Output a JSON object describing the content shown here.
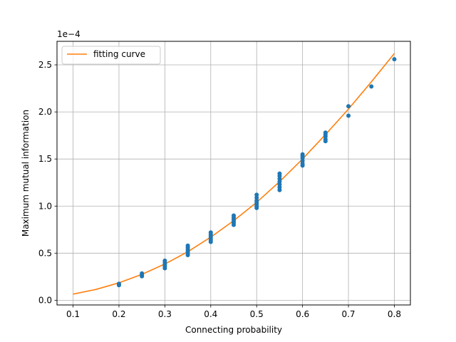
{
  "chart_data": {
    "type": "scatter",
    "xlabel": "Connecting probability",
    "ylabel": "Maximum mutual information",
    "y_offset_text": "1e−4",
    "xlim": [
      0.065,
      0.835
    ],
    "ylim": [
      -5e-06,
      0.000275
    ],
    "x_ticks": [
      0.1,
      0.2,
      0.3,
      0.4,
      0.5,
      0.6,
      0.7,
      0.8
    ],
    "x_tick_labels": [
      "0.1",
      "0.2",
      "0.3",
      "0.4",
      "0.5",
      "0.6",
      "0.7",
      "0.8"
    ],
    "y_ticks": [
      0,
      5e-05,
      0.0001,
      0.00015,
      0.0002,
      0.00025
    ],
    "y_tick_labels": [
      "0.0",
      "0.5",
      "1.0",
      "1.5",
      "2.0",
      "2.5"
    ],
    "grid": true,
    "legend_position": "top-left",
    "colors": {
      "points": "#1f77b4",
      "curve": "#ff7f0e",
      "grid": "#b0b0b0"
    },
    "series": [
      {
        "kind": "points",
        "points": [
          [
            0.2,
            1.6e-05
          ],
          [
            0.2,
            1.75e-05
          ],
          [
            0.25,
            2.55e-05
          ],
          [
            0.25,
            2.7e-05
          ],
          [
            0.25,
            2.85e-05
          ],
          [
            0.3,
            3.4e-05
          ],
          [
            0.3,
            3.6e-05
          ],
          [
            0.3,
            3.8e-05
          ],
          [
            0.3,
            4e-05
          ],
          [
            0.3,
            4.2e-05
          ],
          [
            0.35,
            4.8e-05
          ],
          [
            0.35,
            5e-05
          ],
          [
            0.35,
            5.2e-05
          ],
          [
            0.35,
            5.4e-05
          ],
          [
            0.35,
            5.6e-05
          ],
          [
            0.35,
            5.8e-05
          ],
          [
            0.4,
            6.2e-05
          ],
          [
            0.4,
            6.4e-05
          ],
          [
            0.4,
            6.6e-05
          ],
          [
            0.4,
            6.8e-05
          ],
          [
            0.4,
            7e-05
          ],
          [
            0.4,
            7.2e-05
          ],
          [
            0.45,
            8e-05
          ],
          [
            0.45,
            8.2e-05
          ],
          [
            0.45,
            8.4e-05
          ],
          [
            0.45,
            8.6e-05
          ],
          [
            0.45,
            8.8e-05
          ],
          [
            0.45,
            9e-05
          ],
          [
            0.5,
            9.8e-05
          ],
          [
            0.5,
            0.0001
          ],
          [
            0.5,
            0.000102
          ],
          [
            0.5,
            0.000104
          ],
          [
            0.5,
            0.000106
          ],
          [
            0.5,
            0.000109
          ],
          [
            0.5,
            0.000112
          ],
          [
            0.55,
            0.000117
          ],
          [
            0.55,
            0.00012
          ],
          [
            0.55,
            0.000123
          ],
          [
            0.55,
            0.000126
          ],
          [
            0.55,
            0.000129
          ],
          [
            0.55,
            0.000132
          ],
          [
            0.55,
            0.0001345
          ],
          [
            0.6,
            0.000143
          ],
          [
            0.6,
            0.000145
          ],
          [
            0.6,
            0.000148
          ],
          [
            0.6,
            0.000151
          ],
          [
            0.6,
            0.000153
          ],
          [
            0.6,
            0.000155
          ],
          [
            0.65,
            0.000169
          ],
          [
            0.65,
            0.000171
          ],
          [
            0.65,
            0.000174
          ],
          [
            0.65,
            0.000176
          ],
          [
            0.65,
            0.000178
          ],
          [
            0.7,
            0.000196
          ],
          [
            0.7,
            0.000206
          ],
          [
            0.75,
            0.000227
          ],
          [
            0.8,
            0.000256
          ]
        ]
      },
      {
        "kind": "line",
        "name": "fitting curve",
        "x": [
          0.1,
          0.15,
          0.2,
          0.25,
          0.3,
          0.35,
          0.4,
          0.45,
          0.5,
          0.55,
          0.6,
          0.65,
          0.7,
          0.75,
          0.8
        ],
        "y": [
          6.5e-06,
          1.15e-05,
          1.85e-05,
          2.75e-05,
          3.85e-05,
          5.15e-05,
          6.7e-05,
          8.45e-05,
          0.000104,
          0.000126,
          0.00015,
          0.000176,
          0.000203,
          0.000232,
          0.000262
        ]
      }
    ]
  }
}
